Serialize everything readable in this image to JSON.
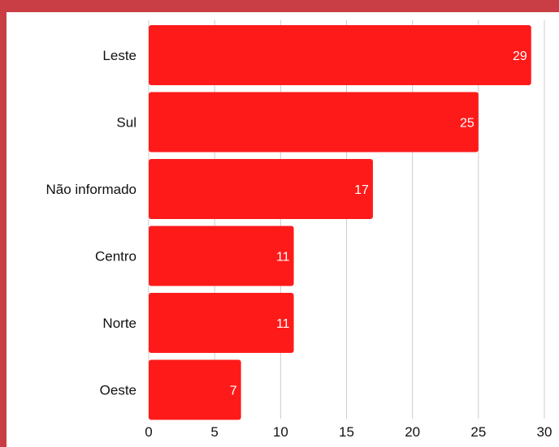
{
  "chart_data": {
    "type": "bar",
    "orientation": "horizontal",
    "categories": [
      "Leste",
      "Sul",
      "Não informado",
      "Centro",
      "Norte",
      "Oeste"
    ],
    "values": [
      29,
      25,
      17,
      11,
      11,
      7
    ],
    "data_labels": [
      "29",
      "25",
      "17",
      "11",
      "11",
      "7"
    ],
    "x_ticks": [
      "0",
      "5",
      "10",
      "15",
      "20",
      "25",
      "30"
    ],
    "xlim": [
      0,
      30
    ],
    "grid": "vertical",
    "legend": "none",
    "colors": {
      "bar": "#ff1a1a",
      "frame": "#c83e44",
      "background": "#ffffff",
      "gridline": "#cccccc"
    }
  }
}
